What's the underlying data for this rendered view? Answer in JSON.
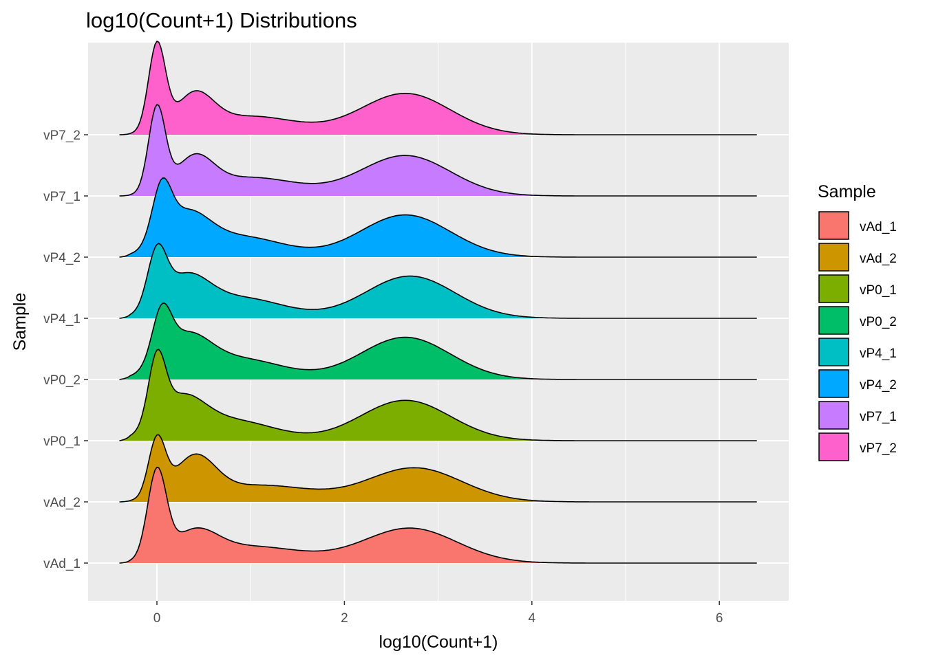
{
  "chart_data": {
    "type": "ridgeline-density",
    "title": "log10(Count+1) Distributions",
    "xlabel": "log10(Count+1)",
    "ylabel": "Sample",
    "xlim": [
      -0.75,
      6.75
    ],
    "x_ticks": [
      0,
      2,
      4,
      6
    ],
    "x_tick_labels": [
      "0",
      "2",
      "4",
      "6"
    ],
    "grid": true,
    "legend": {
      "title": "Sample",
      "position": "right"
    },
    "series": [
      {
        "name": "vAd_1",
        "color": "#F8766D",
        "peaks": [
          [
            0.0,
            0.94,
            0.1
          ],
          [
            0.4,
            0.28,
            0.24
          ],
          [
            1.0,
            0.18,
            0.55
          ],
          [
            2.7,
            0.38,
            0.5
          ]
        ]
      },
      {
        "name": "vAd_2",
        "color": "#CD9600",
        "peaks": [
          [
            0.0,
            0.62,
            0.09
          ],
          [
            0.4,
            0.44,
            0.22
          ],
          [
            1.1,
            0.18,
            0.55
          ],
          [
            2.75,
            0.37,
            0.5
          ]
        ]
      },
      {
        "name": "vP0_1",
        "color": "#7CAE00",
        "peaks": [
          [
            0.0,
            0.7,
            0.09
          ],
          [
            0.25,
            0.4,
            0.25
          ],
          [
            0.8,
            0.22,
            0.45
          ],
          [
            2.65,
            0.44,
            0.48
          ]
        ]
      },
      {
        "name": "vP0_2",
        "color": "#00BE67",
        "peaks": [
          [
            0.05,
            0.52,
            0.1
          ],
          [
            0.3,
            0.42,
            0.26
          ],
          [
            0.9,
            0.22,
            0.45
          ],
          [
            2.65,
            0.46,
            0.48
          ]
        ]
      },
      {
        "name": "vP4_1",
        "color": "#00BFC4",
        "peaks": [
          [
            0.0,
            0.58,
            0.1
          ],
          [
            0.3,
            0.4,
            0.25
          ],
          [
            0.9,
            0.22,
            0.45
          ],
          [
            2.7,
            0.46,
            0.48
          ]
        ]
      },
      {
        "name": "vP4_2",
        "color": "#00A9FF",
        "peaks": [
          [
            0.05,
            0.56,
            0.1
          ],
          [
            0.3,
            0.42,
            0.25
          ],
          [
            0.9,
            0.22,
            0.45
          ],
          [
            2.65,
            0.46,
            0.48
          ]
        ]
      },
      {
        "name": "vP7_1",
        "color": "#C77CFF",
        "peaks": [
          [
            0.0,
            0.92,
            0.09
          ],
          [
            0.4,
            0.36,
            0.2
          ],
          [
            1.0,
            0.2,
            0.5
          ],
          [
            2.65,
            0.44,
            0.48
          ]
        ]
      },
      {
        "name": "vP7_2",
        "color": "#FF61CC",
        "peaks": [
          [
            0.0,
            0.94,
            0.09
          ],
          [
            0.4,
            0.38,
            0.2
          ],
          [
            1.0,
            0.2,
            0.5
          ],
          [
            2.65,
            0.45,
            0.48
          ]
        ]
      }
    ],
    "density_x_range": [
      -0.4,
      6.4
    ],
    "ridge_scale": 1.5
  }
}
